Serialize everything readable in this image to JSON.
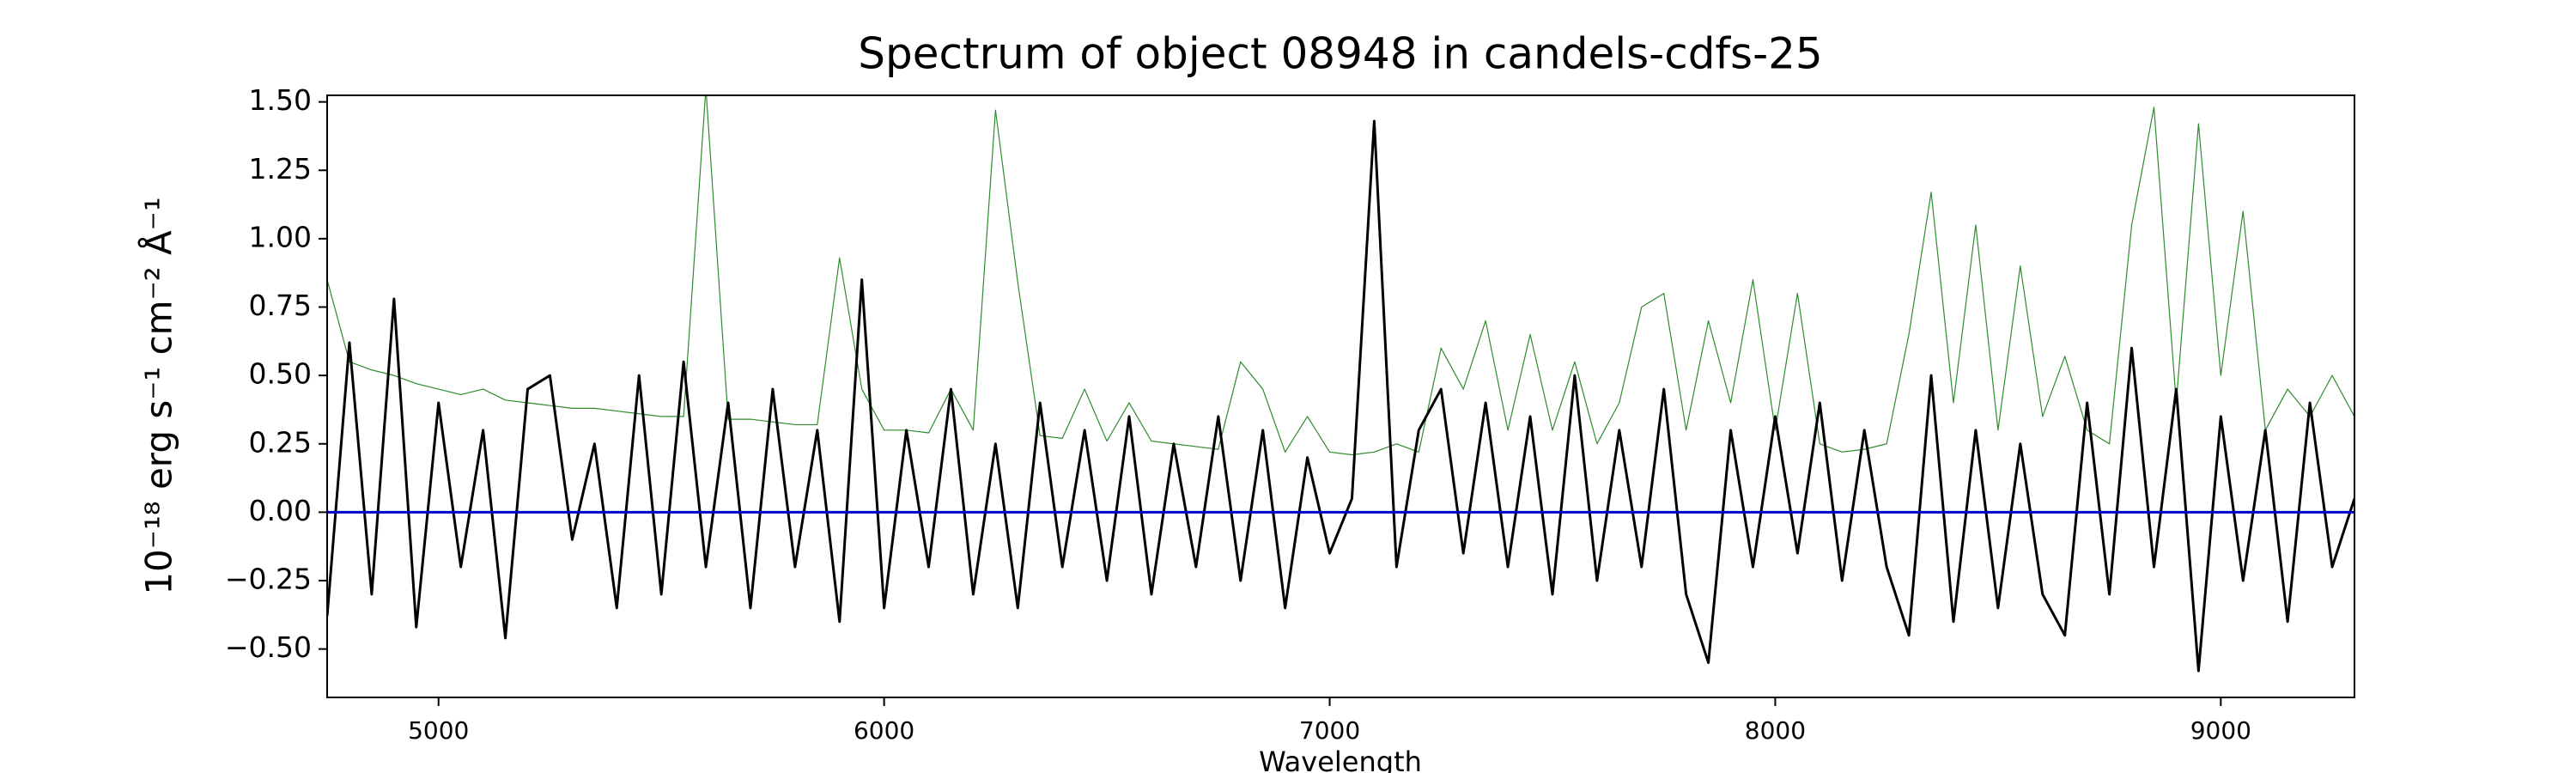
{
  "chart_data": {
    "type": "line",
    "title": "Spectrum of object 08948 in candels-cdfs-25",
    "xlabel": "Wavelength",
    "ylabel": "10⁻¹⁸ erg s⁻¹ cm⁻² Å⁻¹",
    "xlim": [
      4750,
      9300
    ],
    "ylim": [
      -0.677,
      1.524
    ],
    "xticks": [
      5000,
      6000,
      7000,
      8000,
      9000
    ],
    "yticks": [
      {
        "value": -0.5,
        "label": "−0.50"
      },
      {
        "value": -0.25,
        "label": "−0.25"
      },
      {
        "value": 0,
        "label": "0.00"
      },
      {
        "value": 0.25,
        "label": "0.25"
      },
      {
        "value": 0.5,
        "label": "0.50"
      },
      {
        "value": 0.75,
        "label": "0.75"
      },
      {
        "value": 1,
        "label": "1.00"
      },
      {
        "value": 1.25,
        "label": "1.25"
      },
      {
        "value": 1.5,
        "label": "1.50"
      }
    ],
    "grid": false,
    "series": [
      {
        "color": "#2e8b2e",
        "width": 1.2,
        "x": [
          4750,
          4800,
          4850,
          4900,
          4950,
          5000,
          5050,
          5100,
          5150,
          5200,
          5250,
          5300,
          5350,
          5400,
          5450,
          5500,
          5550,
          5600,
          5650,
          5700,
          5750,
          5800,
          5850,
          5900,
          5950,
          6000,
          6050,
          6100,
          6150,
          6200,
          6250,
          6300,
          6350,
          6400,
          6450,
          6500,
          6550,
          6600,
          6650,
          6700,
          6750,
          6800,
          6850,
          6900,
          6950,
          7000,
          7050,
          7100,
          7150,
          7200,
          7250,
          7300,
          7350,
          7400,
          7450,
          7500,
          7550,
          7600,
          7650,
          7700,
          7750,
          7800,
          7850,
          7900,
          7950,
          8000,
          8050,
          8100,
          8150,
          8200,
          8250,
          8300,
          8350,
          8400,
          8450,
          8500,
          8550,
          8600,
          8650,
          8700,
          8750,
          8800,
          8850,
          8900,
          8950,
          9000,
          9050,
          9100,
          9150,
          9200,
          9250,
          9300
        ],
        "values": [
          0.85,
          0.55,
          0.52,
          0.5,
          0.47,
          0.45,
          0.43,
          0.45,
          0.41,
          0.4,
          0.39,
          0.38,
          0.38,
          0.37,
          0.36,
          0.35,
          0.35,
          1.55,
          0.34,
          0.34,
          0.33,
          0.32,
          0.32,
          0.93,
          0.45,
          0.3,
          0.3,
          0.29,
          0.45,
          0.3,
          1.47,
          0.84,
          0.28,
          0.27,
          0.45,
          0.26,
          0.4,
          0.26,
          0.25,
          0.24,
          0.23,
          0.55,
          0.45,
          0.22,
          0.35,
          0.22,
          0.21,
          0.22,
          0.25,
          0.22,
          0.6,
          0.45,
          0.7,
          0.3,
          0.65,
          0.3,
          0.55,
          0.25,
          0.4,
          0.75,
          0.8,
          0.3,
          0.7,
          0.4,
          0.85,
          0.3,
          0.8,
          0.25,
          0.22,
          0.23,
          0.25,
          0.65,
          1.17,
          0.4,
          1.05,
          0.3,
          0.9,
          0.35,
          0.57,
          0.3,
          0.25,
          1.05,
          1.48,
          0.4,
          1.42,
          0.5,
          1.1,
          0.3,
          0.45,
          0.35,
          0.5,
          0.35
        ]
      },
      {
        "color": "#000000",
        "width": 3,
        "x": [
          4750,
          4800,
          4850,
          4900,
          4950,
          5000,
          5050,
          5100,
          5150,
          5200,
          5250,
          5300,
          5350,
          5400,
          5450,
          5500,
          5550,
          5600,
          5650,
          5700,
          5750,
          5800,
          5850,
          5900,
          5950,
          6000,
          6050,
          6100,
          6150,
          6200,
          6250,
          6300,
          6350,
          6400,
          6450,
          6500,
          6550,
          6600,
          6650,
          6700,
          6750,
          6800,
          6850,
          6900,
          6950,
          7000,
          7050,
          7100,
          7150,
          7200,
          7250,
          7300,
          7350,
          7400,
          7450,
          7500,
          7550,
          7600,
          7650,
          7700,
          7750,
          7800,
          7850,
          7900,
          7950,
          8000,
          8050,
          8100,
          8150,
          8200,
          8250,
          8300,
          8350,
          8400,
          8450,
          8500,
          8550,
          8600,
          8650,
          8700,
          8750,
          8800,
          8850,
          8900,
          8950,
          9000,
          9050,
          9100,
          9150,
          9200,
          9250,
          9300
        ],
        "values": [
          -0.38,
          0.62,
          -0.3,
          0.78,
          -0.42,
          0.4,
          -0.2,
          0.3,
          -0.46,
          0.45,
          0.5,
          -0.1,
          0.25,
          -0.35,
          0.5,
          -0.3,
          0.55,
          -0.2,
          0.4,
          -0.35,
          0.45,
          -0.2,
          0.3,
          -0.4,
          0.85,
          -0.35,
          0.3,
          -0.2,
          0.45,
          -0.3,
          0.25,
          -0.35,
          0.4,
          -0.2,
          0.3,
          -0.25,
          0.35,
          -0.3,
          0.25,
          -0.2,
          0.35,
          -0.25,
          0.3,
          -0.35,
          0.2,
          -0.15,
          0.05,
          1.43,
          -0.2,
          0.3,
          0.45,
          -0.15,
          0.4,
          -0.2,
          0.35,
          -0.3,
          0.5,
          -0.25,
          0.3,
          -0.2,
          0.45,
          -0.3,
          -0.55,
          0.3,
          -0.2,
          0.35,
          -0.15,
          0.4,
          -0.25,
          0.3,
          -0.2,
          -0.45,
          0.5,
          -0.4,
          0.3,
          -0.35,
          0.25,
          -0.3,
          -0.45,
          0.4,
          -0.3,
          0.6,
          -0.2,
          0.45,
          -0.58,
          0.35,
          -0.25,
          0.3,
          -0.4,
          0.4,
          -0.2,
          0.05
        ]
      },
      {
        "color": "#0000cc",
        "width": 3,
        "x": [
          4750,
          9300
        ],
        "values": [
          0,
          0
        ]
      }
    ]
  }
}
